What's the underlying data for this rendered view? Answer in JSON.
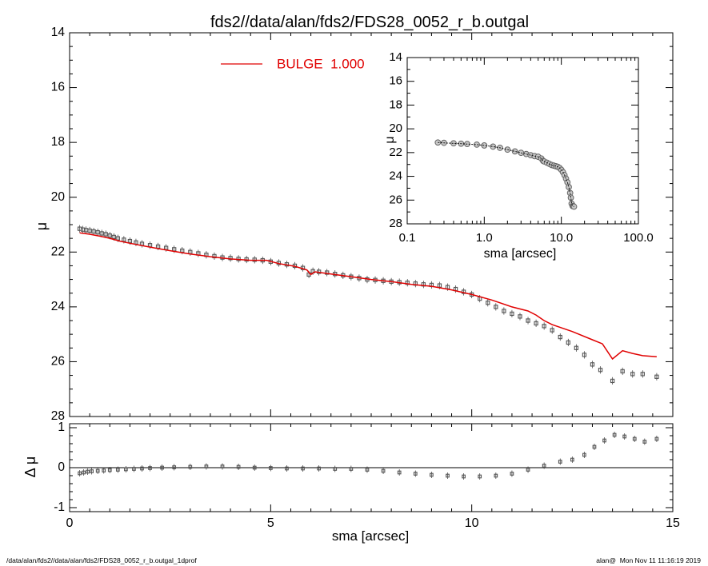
{
  "chart_data": [
    {
      "type": "scatter",
      "title": "fds2//data/alan/fds2/FDS28_0052_r_b.outgal",
      "xlabel": "",
      "ylabel": "μ",
      "xlim": [
        0,
        15
      ],
      "ylim": [
        28,
        14
      ],
      "y_inverted": true,
      "x_ticks": [
        0,
        5,
        10,
        15
      ],
      "y_ticks": [
        14,
        16,
        18,
        20,
        22,
        24,
        26,
        28
      ],
      "legend": {
        "label": "BULGE  1.000",
        "color": "#e00000",
        "placement": "top-center"
      },
      "series": [
        {
          "name": "",
          "style": "open-squares-with-errorbars",
          "color": "#555555",
          "x": [
            0.25,
            0.33,
            0.41,
            0.5,
            0.6,
            0.7,
            0.8,
            0.9,
            1.0,
            1.1,
            1.2,
            1.35,
            1.5,
            1.65,
            1.8,
            2.0,
            2.2,
            2.4,
            2.6,
            2.8,
            3.0,
            3.2,
            3.4,
            3.6,
            3.8,
            4.0,
            4.2,
            4.4,
            4.6,
            4.8,
            5.0,
            5.2,
            5.4,
            5.6,
            5.8,
            5.95,
            6.05,
            6.2,
            6.4,
            6.6,
            6.8,
            7.0,
            7.2,
            7.4,
            7.6,
            7.8,
            8.0,
            8.2,
            8.4,
            8.6,
            8.8,
            9.0,
            9.2,
            9.4,
            9.6,
            9.8,
            10.0,
            10.2,
            10.4,
            10.6,
            10.8,
            11.0,
            11.2,
            11.4,
            11.6,
            11.8,
            12.0,
            12.2,
            12.4,
            12.6,
            12.8,
            13.0,
            13.2,
            13.5,
            13.75,
            14.0,
            14.25,
            14.6
          ],
          "y": [
            21.15,
            21.18,
            21.2,
            21.22,
            21.25,
            21.28,
            21.32,
            21.35,
            21.4,
            21.45,
            21.5,
            21.55,
            21.6,
            21.65,
            21.7,
            21.75,
            21.8,
            21.85,
            21.9,
            21.95,
            22.0,
            22.05,
            22.1,
            22.15,
            22.2,
            22.22,
            22.25,
            22.27,
            22.28,
            22.3,
            22.35,
            22.4,
            22.45,
            22.5,
            22.58,
            22.82,
            22.7,
            22.72,
            22.75,
            22.8,
            22.85,
            22.9,
            22.95,
            23.0,
            23.02,
            23.05,
            23.08,
            23.1,
            23.12,
            23.15,
            23.18,
            23.2,
            23.22,
            23.28,
            23.35,
            23.45,
            23.55,
            23.7,
            23.85,
            24.0,
            24.15,
            24.25,
            24.35,
            24.5,
            24.6,
            24.7,
            24.85,
            25.1,
            25.3,
            25.5,
            25.75,
            26.1,
            26.3,
            26.7,
            26.35,
            26.45,
            26.45,
            26.55
          ]
        },
        {
          "name": "BULGE  1.000",
          "style": "line",
          "color": "#e00000",
          "x": [
            0.25,
            0.5,
            0.75,
            1.0,
            1.25,
            1.5,
            2.0,
            2.5,
            3.0,
            3.5,
            4.0,
            4.5,
            4.9,
            5.2,
            5.6,
            5.9,
            6.0,
            6.1,
            6.5,
            7.0,
            7.5,
            8.0,
            8.5,
            9.0,
            9.5,
            10.0,
            10.5,
            11.0,
            11.4,
            11.6,
            11.8,
            12.0,
            12.5,
            13.0,
            13.25,
            13.5,
            13.75,
            14.0,
            14.25,
            14.6
          ],
          "y": [
            21.3,
            21.35,
            21.42,
            21.5,
            21.6,
            21.68,
            21.82,
            21.95,
            22.07,
            22.17,
            22.25,
            22.3,
            22.3,
            22.42,
            22.52,
            22.65,
            22.82,
            22.72,
            22.8,
            22.9,
            23.0,
            23.08,
            23.18,
            23.25,
            23.38,
            23.55,
            23.75,
            24.0,
            24.15,
            24.3,
            24.5,
            24.65,
            24.9,
            25.2,
            25.35,
            25.9,
            25.6,
            25.7,
            25.78,
            25.82
          ]
        }
      ]
    },
    {
      "type": "scatter",
      "title": "",
      "xlabel": "sma [arcsec]",
      "ylabel": "Δ μ",
      "xlim": [
        0,
        15
      ],
      "ylim": [
        -1.1,
        1.1
      ],
      "x_ticks": [
        0,
        5,
        10,
        15
      ],
      "y_ticks": [
        -1,
        0,
        1
      ],
      "reference_line": 0,
      "series": [
        {
          "name": "",
          "style": "open-squares-with-errorbars",
          "color": "#555555",
          "x": [
            0.25,
            0.35,
            0.45,
            0.55,
            0.7,
            0.85,
            1.0,
            1.2,
            1.4,
            1.6,
            1.8,
            2.0,
            2.3,
            2.6,
            3.0,
            3.4,
            3.8,
            4.2,
            4.6,
            5.0,
            5.4,
            5.8,
            6.2,
            6.6,
            7.0,
            7.4,
            7.8,
            8.2,
            8.6,
            9.0,
            9.4,
            9.8,
            10.2,
            10.6,
            11.0,
            11.4,
            11.8,
            12.2,
            12.5,
            12.8,
            13.05,
            13.3,
            13.55,
            13.8,
            14.05,
            14.3,
            14.6
          ],
          "y": [
            -0.14,
            -0.12,
            -0.1,
            -0.09,
            -0.08,
            -0.07,
            -0.06,
            -0.05,
            -0.04,
            -0.03,
            -0.02,
            -0.01,
            0.0,
            0.01,
            0.02,
            0.03,
            0.03,
            0.02,
            0.0,
            -0.01,
            -0.02,
            -0.02,
            -0.02,
            -0.03,
            -0.03,
            -0.05,
            -0.08,
            -0.12,
            -0.15,
            -0.18,
            -0.2,
            -0.22,
            -0.22,
            -0.2,
            -0.15,
            -0.05,
            0.05,
            0.15,
            0.2,
            0.32,
            0.52,
            0.68,
            0.82,
            0.78,
            0.72,
            0.65,
            0.72
          ]
        }
      ]
    },
    {
      "type": "scatter",
      "title": "",
      "xlabel": "sma [arcsec]",
      "ylabel": "μ",
      "x_scale": "log",
      "xlim": [
        0.1,
        100
      ],
      "ylim": [
        28,
        14
      ],
      "y_inverted": true,
      "x_tick_labels": [
        "0.1",
        "1.0",
        "10.0",
        "100.0"
      ],
      "x_ticks": [
        0.1,
        1,
        10,
        100
      ],
      "y_ticks": [
        14,
        16,
        18,
        20,
        22,
        24,
        26,
        28
      ],
      "series": [
        {
          "name": "",
          "style": "open-circles-with-line",
          "color": "#777777",
          "x": [
            0.25,
            0.3,
            0.4,
            0.5,
            0.6,
            0.8,
            1.0,
            1.3,
            1.6,
            2.0,
            2.5,
            3.0,
            3.5,
            4.0,
            4.5,
            5.0,
            5.5,
            5.8,
            6.0,
            6.5,
            7.0,
            7.5,
            8.0,
            8.5,
            9.0,
            9.5,
            10.0,
            10.5,
            11.0,
            11.5,
            12.0,
            12.5,
            13.0,
            13.3,
            13.6,
            14.0,
            14.3,
            14.6
          ],
          "y": [
            21.15,
            21.18,
            21.22,
            21.25,
            21.28,
            21.33,
            21.4,
            21.5,
            21.6,
            21.75,
            21.9,
            22.02,
            22.12,
            22.22,
            22.3,
            22.35,
            22.5,
            22.7,
            22.75,
            22.85,
            22.95,
            23.05,
            23.1,
            23.15,
            23.2,
            23.3,
            23.45,
            23.65,
            23.9,
            24.2,
            24.5,
            24.9,
            25.4,
            25.8,
            26.3,
            26.5,
            26.5,
            26.55
          ]
        }
      ]
    }
  ],
  "footer": {
    "path": "/data/alan/fds2//data/alan/fds2/FDS28_0052_r_b.outgal_1dprof",
    "user_time": "alan@  Mon Nov 11 11:16:19 2019"
  }
}
